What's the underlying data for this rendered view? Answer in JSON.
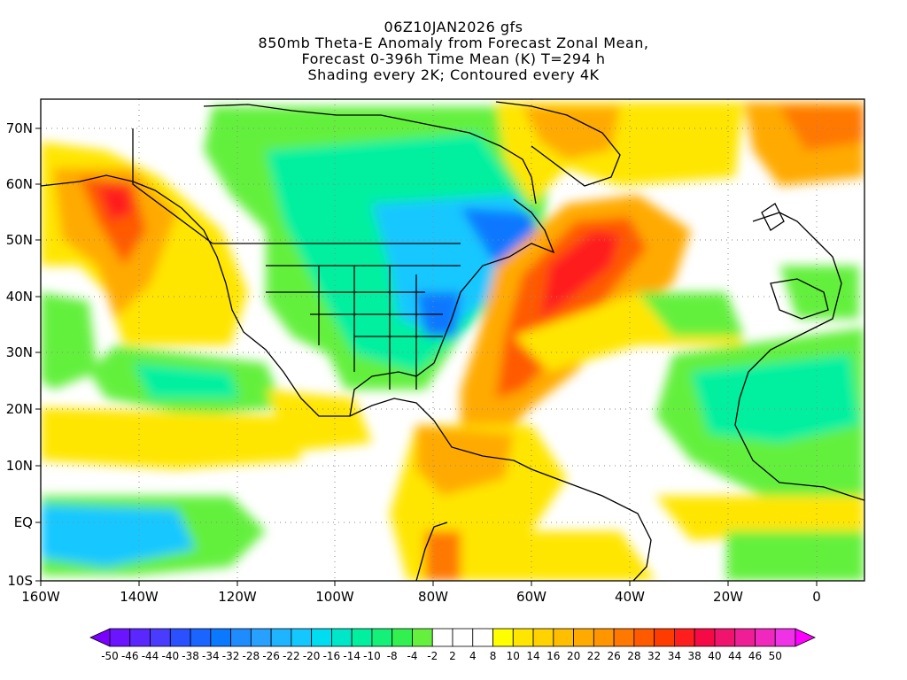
{
  "titles": {
    "line1": "06Z10JAN2026 gfs",
    "line2": "850mb Theta-E Anomaly from Forecast Zonal Mean,",
    "line3": "Forecast 0-396h Time Mean (K) T=294 h",
    "line4": "Shading every 2K; Contoured every 4K"
  },
  "axes": {
    "lat_labels": [
      "70N",
      "60N",
      "50N",
      "40N",
      "30N",
      "20N",
      "10N",
      "EQ",
      "10S"
    ],
    "lon_labels": [
      "160W",
      "140W",
      "120W",
      "100W",
      "80W",
      "60W",
      "40W",
      "20W",
      "0"
    ]
  },
  "colorbar": {
    "labels": [
      "-50",
      "-46",
      "-44",
      "-40",
      "-38",
      "-34",
      "-32",
      "-28",
      "-26",
      "-22",
      "-20",
      "-16",
      "-14",
      "-10",
      "-8",
      "-4",
      "-2",
      "2",
      "4",
      "8",
      "10",
      "14",
      "16",
      "20",
      "22",
      "26",
      "28",
      "32",
      "34",
      "38",
      "40",
      "44",
      "46",
      "50"
    ],
    "colors": [
      "#7a00ff",
      "#6a14ff",
      "#5a28ff",
      "#4a3cff",
      "#2a50ff",
      "#1a64ff",
      "#0a78ff",
      "#1e8cff",
      "#28a0ff",
      "#1eb4ff",
      "#14c8ff",
      "#00dcf0",
      "#00e6c8",
      "#00f0a0",
      "#14f078",
      "#32f050",
      "#64f03c",
      "#ffffff",
      "#ffffff",
      "#ffffff",
      "#ffff00",
      "#ffe600",
      "#ffd200",
      "#ffbe00",
      "#ffaa00",
      "#ff9600",
      "#ff7800",
      "#ff5a00",
      "#ff3c00",
      "#ff1e1e",
      "#f50a46",
      "#f0146e",
      "#f01e96",
      "#f028be",
      "#f032e6",
      "#ff00ff"
    ]
  },
  "colors": {
    "green": "#64f03c",
    "cyan": "#14c8ff",
    "blue": "#0a78ff",
    "yellow": "#ffe600",
    "orange": "#ffaa00",
    "red": "#ff3c00"
  }
}
